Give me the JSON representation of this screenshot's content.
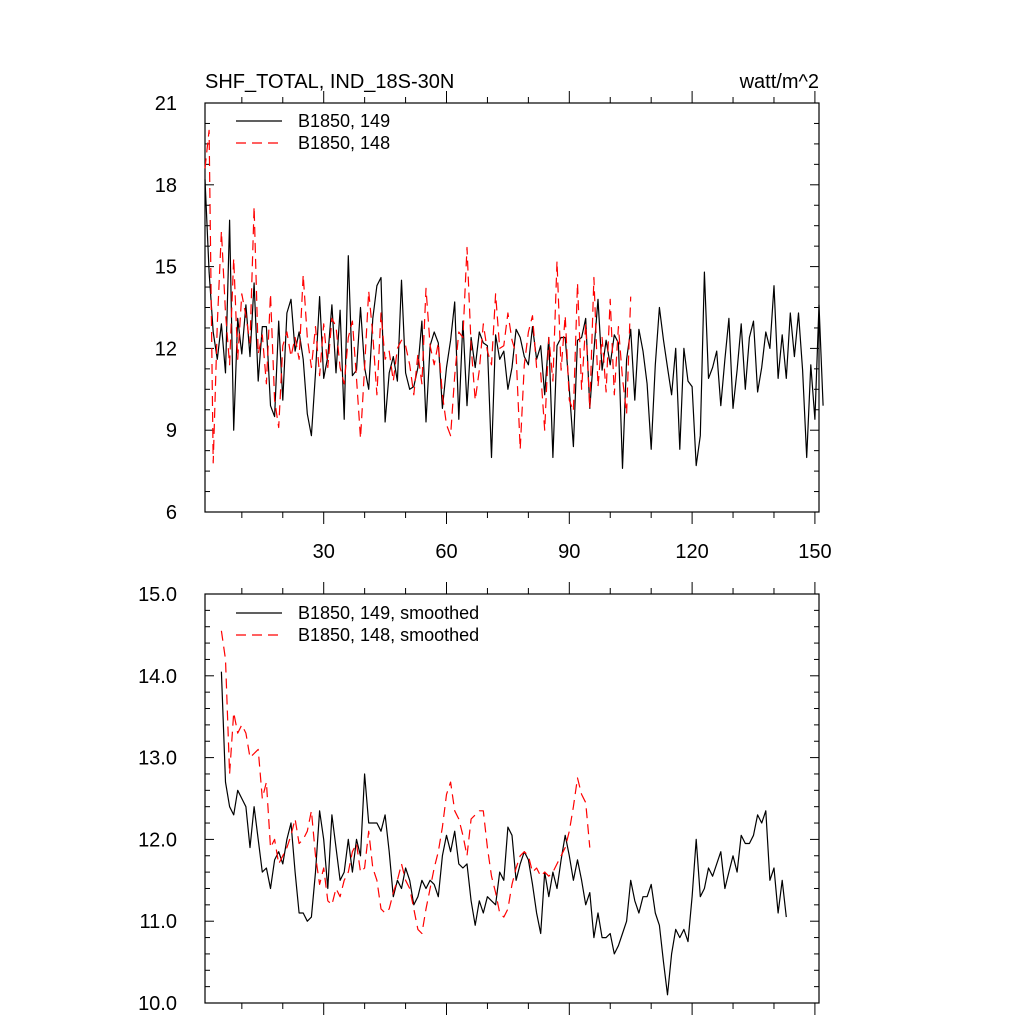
{
  "chart_data": [
    {
      "type": "line",
      "title": "SHF_TOTAL, IND_18S-30N",
      "units_label": "watt/m^2",
      "xlim": [
        1,
        151
      ],
      "ylim": [
        6,
        21
      ],
      "x_ticks": [
        30,
        60,
        90,
        120,
        150
      ],
      "x_tick_labels": [
        "30",
        "60",
        "90",
        "120",
        "150"
      ],
      "y_ticks": [
        6,
        9,
        12,
        15,
        18,
        21
      ],
      "y_tick_labels": [
        "6",
        "9",
        "12",
        "15",
        "18",
        "21"
      ],
      "legend_position": "top-left",
      "series": [
        {
          "name": "B1850, 149",
          "color": "#000000",
          "dash": "solid",
          "x_start": 1,
          "values": [
            18.2,
            14.8,
            12.6,
            11.6,
            12.9,
            11.1,
            16.7,
            9.0,
            13.1,
            11.8,
            13.6,
            11.7,
            14.4,
            10.8,
            12.8,
            12.8,
            9.9,
            9.5,
            13.0,
            10.1,
            13.3,
            13.8,
            11.9,
            12.6,
            11.6,
            9.6,
            8.8,
            11.1,
            13.9,
            10.9,
            11.7,
            13.6,
            11.1,
            13.4,
            9.4,
            15.4,
            11.0,
            11.2,
            13.5,
            11.3,
            10.5,
            13.1,
            14.3,
            14.6,
            9.3,
            11.1,
            11.7,
            10.8,
            14.5,
            11.1,
            10.5,
            10.6,
            11.3,
            13.0,
            9.3,
            12.1,
            12.6,
            12.2,
            9.8,
            11.3,
            12.3,
            13.7,
            9.4,
            13.0,
            9.9,
            12.4,
            11.3,
            12.6,
            12.2,
            12.1,
            8.0,
            12.5,
            11.6,
            11.9,
            10.5,
            11.3,
            12.7,
            12.4,
            11.7,
            11.4,
            12.8,
            11.6,
            12.1,
            10.3,
            12.4,
            8.0,
            12.1,
            12.4,
            12.4,
            10.5,
            8.4,
            12.3,
            12.4,
            13.1,
            9.8,
            11.9,
            13.8,
            11.2,
            12.3,
            11.4,
            12.5,
            12.2,
            7.6,
            11.6,
            12.7,
            10.1,
            12.7,
            11.9,
            10.7,
            8.3,
            11.4,
            13.5,
            12.3,
            11.3,
            10.3,
            12.0,
            8.3,
            12.0,
            10.8,
            10.6,
            7.7,
            8.8,
            14.8,
            10.9,
            11.3,
            11.9,
            9.9,
            11.6,
            13.1,
            9.8,
            11.2,
            12.9,
            10.5,
            12.4,
            13.0,
            10.4,
            11.3,
            12.6,
            12.0,
            14.3,
            10.9,
            12.5,
            10.9,
            13.3,
            11.7,
            13.3,
            11.2,
            8.0,
            11.4,
            9.4,
            13.6,
            9.9
          ]
        },
        {
          "name": "B1850, 148",
          "color": "#ff0000",
          "dash": "dashed",
          "x_start": 1,
          "values": [
            18.6,
            20.0,
            7.8,
            12.9,
            16.3,
            13.3,
            11.4,
            15.3,
            11.6,
            14.0,
            13.2,
            12.2,
            17.2,
            11.8,
            12.5,
            10.7,
            14.0,
            10.1,
            9.1,
            12.1,
            12.6,
            11.7,
            12.4,
            11.6,
            14.7,
            12.4,
            11.3,
            12.8,
            11.0,
            12.9,
            11.3,
            13.1,
            12.8,
            11.3,
            10.7,
            12.4,
            13.0,
            10.9,
            8.7,
            11.3,
            14.1,
            12.5,
            10.3,
            13.3,
            11.6,
            11.9,
            10.8,
            12.0,
            12.3,
            12.1,
            11.4,
            10.3,
            11.8,
            10.7,
            14.2,
            12.1,
            11.4,
            12.2,
            10.3,
            9.2,
            8.8,
            11.0,
            12.6,
            12.4,
            15.7,
            12.1,
            10.1,
            11.2,
            12.9,
            11.9,
            11.4,
            14.0,
            12.0,
            12.1,
            13.3,
            12.3,
            11.8,
            8.3,
            11.4,
            12.6,
            13.2,
            11.3,
            11.1,
            9.0,
            12.4,
            10.8,
            15.2,
            11.2,
            13.2,
            10.1,
            9.7,
            14.4,
            10.5,
            12.9,
            9.8,
            14.6,
            10.6,
            12.4,
            10.4,
            13.8,
            10.3,
            12.8,
            10.9,
            9.6,
            13.9
          ]
        }
      ]
    },
    {
      "type": "line",
      "xlim": [
        1,
        151
      ],
      "ylim": [
        10.0,
        15.0
      ],
      "x_ticks": [
        30,
        60,
        90,
        120,
        150
      ],
      "y_ticks": [
        10.0,
        11.0,
        12.0,
        13.0,
        14.0,
        15.0
      ],
      "y_tick_labels": [
        "10.0",
        "11.0",
        "12.0",
        "13.0",
        "14.0",
        "15.0"
      ],
      "legend_position": "top-left",
      "series": [
        {
          "name": "B1850, 149, smoothed",
          "color": "#000000",
          "dash": "solid",
          "x_start": 5,
          "values": [
            14.05,
            12.7,
            12.4,
            12.3,
            12.6,
            12.5,
            12.4,
            11.9,
            12.4,
            12.0,
            11.6,
            11.65,
            11.4,
            11.75,
            11.85,
            11.7,
            12.0,
            12.2,
            11.6,
            11.1,
            11.1,
            11.0,
            11.05,
            11.6,
            12.35,
            12.0,
            11.4,
            12.3,
            11.9,
            11.5,
            11.6,
            12.0,
            11.6,
            12.0,
            11.8,
            12.8,
            12.2,
            12.2,
            12.2,
            12.1,
            12.3,
            11.85,
            11.3,
            11.5,
            11.4,
            11.65,
            11.5,
            11.2,
            11.3,
            11.5,
            11.4,
            11.5,
            11.45,
            11.3,
            11.8,
            12.05,
            11.85,
            12.1,
            11.7,
            11.65,
            11.7,
            11.25,
            10.95,
            11.25,
            11.1,
            11.3,
            11.25,
            11.2,
            11.6,
            11.5,
            12.15,
            12.05,
            11.5,
            11.7,
            11.85,
            11.75,
            11.45,
            11.1,
            10.85,
            11.6,
            11.3,
            11.6,
            11.4,
            11.75,
            12.05,
            11.8,
            11.5,
            11.75,
            11.5,
            11.2,
            11.35,
            10.8,
            11.1,
            10.8,
            10.8,
            10.85,
            10.6,
            10.7,
            10.85,
            11.0,
            11.5,
            11.25,
            11.1,
            11.3,
            11.3,
            11.45,
            11.1,
            10.95,
            10.5,
            10.1,
            10.6,
            10.9,
            10.8,
            10.9,
            10.75,
            11.3,
            12.0,
            11.3,
            11.4,
            11.65,
            11.55,
            11.7,
            11.85,
            11.4,
            11.6,
            11.8,
            11.6,
            12.05,
            11.95,
            11.95,
            12.05,
            12.3,
            12.2,
            12.35,
            11.5,
            11.65,
            11.1,
            11.5,
            11.05
          ]
        },
        {
          "name": "B1850, 148, smoothed",
          "color": "#ff0000",
          "dash": "dashed",
          "x_start": 5,
          "values": [
            14.55,
            14.2,
            12.8,
            13.55,
            13.3,
            13.4,
            13.3,
            13.0,
            13.05,
            13.1,
            12.5,
            12.7,
            11.9,
            12.0,
            11.7,
            11.8,
            11.9,
            12.05,
            12.25,
            11.95,
            12.0,
            12.1,
            12.35,
            11.8,
            11.45,
            11.65,
            11.25,
            11.2,
            11.4,
            11.3,
            11.5,
            11.6,
            11.85,
            11.95,
            11.6,
            11.65,
            12.1,
            11.65,
            11.5,
            11.15,
            11.1,
            11.15,
            11.35,
            11.5,
            11.7,
            11.5,
            11.4,
            11.15,
            10.9,
            10.85,
            11.15,
            11.4,
            11.65,
            11.85,
            12.15,
            12.55,
            12.7,
            12.35,
            12.25,
            12.05,
            11.8,
            12.25,
            12.3,
            12.35,
            12.35,
            11.9,
            11.55,
            11.35,
            11.1,
            11.05,
            11.15,
            11.45,
            11.65,
            11.8,
            11.85,
            11.8,
            11.6,
            11.65,
            11.55,
            11.6,
            11.55,
            11.6,
            11.7,
            11.8,
            11.9,
            12.1,
            12.4,
            12.75,
            12.55,
            12.45,
            11.9
          ]
        }
      ]
    }
  ]
}
